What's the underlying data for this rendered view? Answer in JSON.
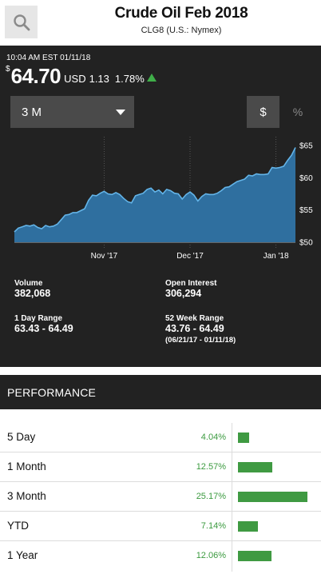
{
  "header": {
    "title": "Crude Oil Feb 2018",
    "subtitle": "CLG8  (U.S.: Nymex)"
  },
  "quote": {
    "timestamp": "10:04 AM EST 01/11/18",
    "currency_sign": "$",
    "price": "64.70",
    "currency": "USD",
    "change": "1.13",
    "change_pct": "1.78%",
    "direction_icon": "up-arrow-icon",
    "up_color": "#3fae49"
  },
  "controls": {
    "range_selected": "3 M",
    "dollar_label": "$",
    "percent_label": "%"
  },
  "chart_data": {
    "type": "area",
    "x_tick_labels": [
      "Nov '17",
      "Dec '17",
      "Jan '18"
    ],
    "y_tick_labels": [
      "$65",
      "$60",
      "$55",
      "$50"
    ],
    "y_ticks": [
      65,
      60,
      55,
      50
    ],
    "ylim": [
      50,
      66
    ],
    "grid": "vertical lines at month starts",
    "series_color": "#2f6f9f",
    "values": [
      51.6,
      52.2,
      52.4,
      52.6,
      52.5,
      52.7,
      52.3,
      52.1,
      52.6,
      52.4,
      52.5,
      52.8,
      53.5,
      54.2,
      54.3,
      54.6,
      54.6,
      54.9,
      55.2,
      56.5,
      57.3,
      57.2,
      57.6,
      57.9,
      57.5,
      57.4,
      57.7,
      57.4,
      56.8,
      56.3,
      56.1,
      57.2,
      57.4,
      57.6,
      58.2,
      58.4,
      57.8,
      58.1,
      57.5,
      58.2,
      58.0,
      57.6,
      57.5,
      56.7,
      57.4,
      57.8,
      57.3,
      56.4,
      57.1,
      57.5,
      57.4,
      57.4,
      57.6,
      58.0,
      58.5,
      58.6,
      59.0,
      59.4,
      59.6,
      59.8,
      60.4,
      60.3,
      60.6,
      60.5,
      60.5,
      60.6,
      61.6,
      61.5,
      61.6,
      61.8,
      62.7,
      63.5,
      64.7
    ],
    "month_start_index": [
      23,
      45,
      67
    ]
  },
  "stats": {
    "volume_label": "Volume",
    "volume_value": "382,068",
    "open_interest_label": "Open Interest",
    "open_interest_value": "306,294",
    "day_range_label": "1 Day Range",
    "day_range_value": "63.43 - 64.49",
    "week52_label": "52 Week Range",
    "week52_value": "43.76 - 64.49",
    "week52_dates": "(06/21/17 - 01/11/18)"
  },
  "performance": {
    "title": "PERFORMANCE",
    "bar_color": "#3f9a42",
    "rows": [
      {
        "label": "5 Day",
        "value": "4.04%",
        "pct": 4.04
      },
      {
        "label": "1 Month",
        "value": "12.57%",
        "pct": 12.57
      },
      {
        "label": "3 Month",
        "value": "25.17%",
        "pct": 25.17
      },
      {
        "label": "YTD",
        "value": "7.14%",
        "pct": 7.14
      },
      {
        "label": "1 Year",
        "value": "12.06%",
        "pct": 12.06
      }
    ]
  }
}
